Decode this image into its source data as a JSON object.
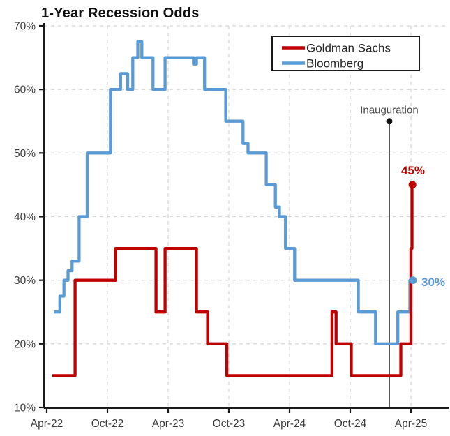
{
  "title": "1-Year Recession Odds",
  "annotations": {
    "inauguration": {
      "label": "Inauguration",
      "x_month": 33.86,
      "dot_pct": 55
    }
  },
  "colors": {
    "goldman_red": "#c00000",
    "bloomberg_blue": "#5b9bd5",
    "axis": "#1a1a1a",
    "grid": "#d8d8d8",
    "tick_text": "#3d3d3d",
    "annotation_line": "#262626"
  },
  "chart_data": {
    "type": "line",
    "step": true,
    "title": "1-Year Recession Odds",
    "xlabel": "",
    "ylabel": "",
    "x_unit": "months since Apr-2022",
    "x_tick_labels": [
      "Apr-22",
      "Oct-22",
      "Apr-23",
      "Oct-23",
      "Apr-24",
      "Oct-24",
      "Apr-25"
    ],
    "x_tick_months": [
      0,
      6,
      12,
      18,
      24,
      30,
      36
    ],
    "y_tick_labels": [
      "10%",
      "20%",
      "30%",
      "40%",
      "50%",
      "60%",
      "70%"
    ],
    "y_ticks": [
      10,
      20,
      30,
      40,
      50,
      60,
      70
    ],
    "ylim": [
      10,
      70
    ],
    "xlim_months": [
      0,
      37
    ],
    "grid": "dashed",
    "legend_position": "top-right",
    "annotation": {
      "label": "Inauguration",
      "x_month": 33.86,
      "marker_pct": 55
    },
    "series": [
      {
        "name": "Goldman Sachs",
        "color": "#c00000",
        "end_label": "45%",
        "end_value": 45,
        "points": [
          [
            0.55,
            15
          ],
          [
            2.8,
            30
          ],
          [
            6.8,
            35
          ],
          [
            10.8,
            25
          ],
          [
            11.7,
            35
          ],
          [
            14.8,
            25
          ],
          [
            15.9,
            20
          ],
          [
            17.8,
            15
          ],
          [
            28.2,
            25
          ],
          [
            28.6,
            20
          ],
          [
            30.1,
            15
          ],
          [
            35.0,
            20
          ],
          [
            36.0,
            35
          ],
          [
            36.1,
            45
          ],
          [
            36.15,
            45
          ]
        ]
      },
      {
        "name": "Bloomberg",
        "color": "#5b9bd5",
        "end_label": "30%",
        "end_value": 30,
        "points": [
          [
            0.7,
            25
          ],
          [
            1.3,
            27.5
          ],
          [
            1.7,
            30
          ],
          [
            2.1,
            31.5
          ],
          [
            2.5,
            33
          ],
          [
            3.2,
            40
          ],
          [
            4.0,
            50
          ],
          [
            6.3,
            60
          ],
          [
            7.3,
            62.5
          ],
          [
            8.0,
            60
          ],
          [
            8.5,
            65
          ],
          [
            9.0,
            67.5
          ],
          [
            9.4,
            65
          ],
          [
            10.5,
            60
          ],
          [
            11.7,
            65
          ],
          [
            14.5,
            64
          ],
          [
            14.8,
            65
          ],
          [
            15.6,
            60
          ],
          [
            17.7,
            55
          ],
          [
            19.4,
            51.5
          ],
          [
            19.9,
            50
          ],
          [
            21.7,
            45
          ],
          [
            22.6,
            41.5
          ],
          [
            23.0,
            40
          ],
          [
            23.6,
            35
          ],
          [
            24.5,
            30
          ],
          [
            30.8,
            25
          ],
          [
            32.5,
            20
          ],
          [
            34.7,
            25
          ],
          [
            35.9,
            30
          ],
          [
            36.2,
            30
          ]
        ]
      }
    ]
  }
}
